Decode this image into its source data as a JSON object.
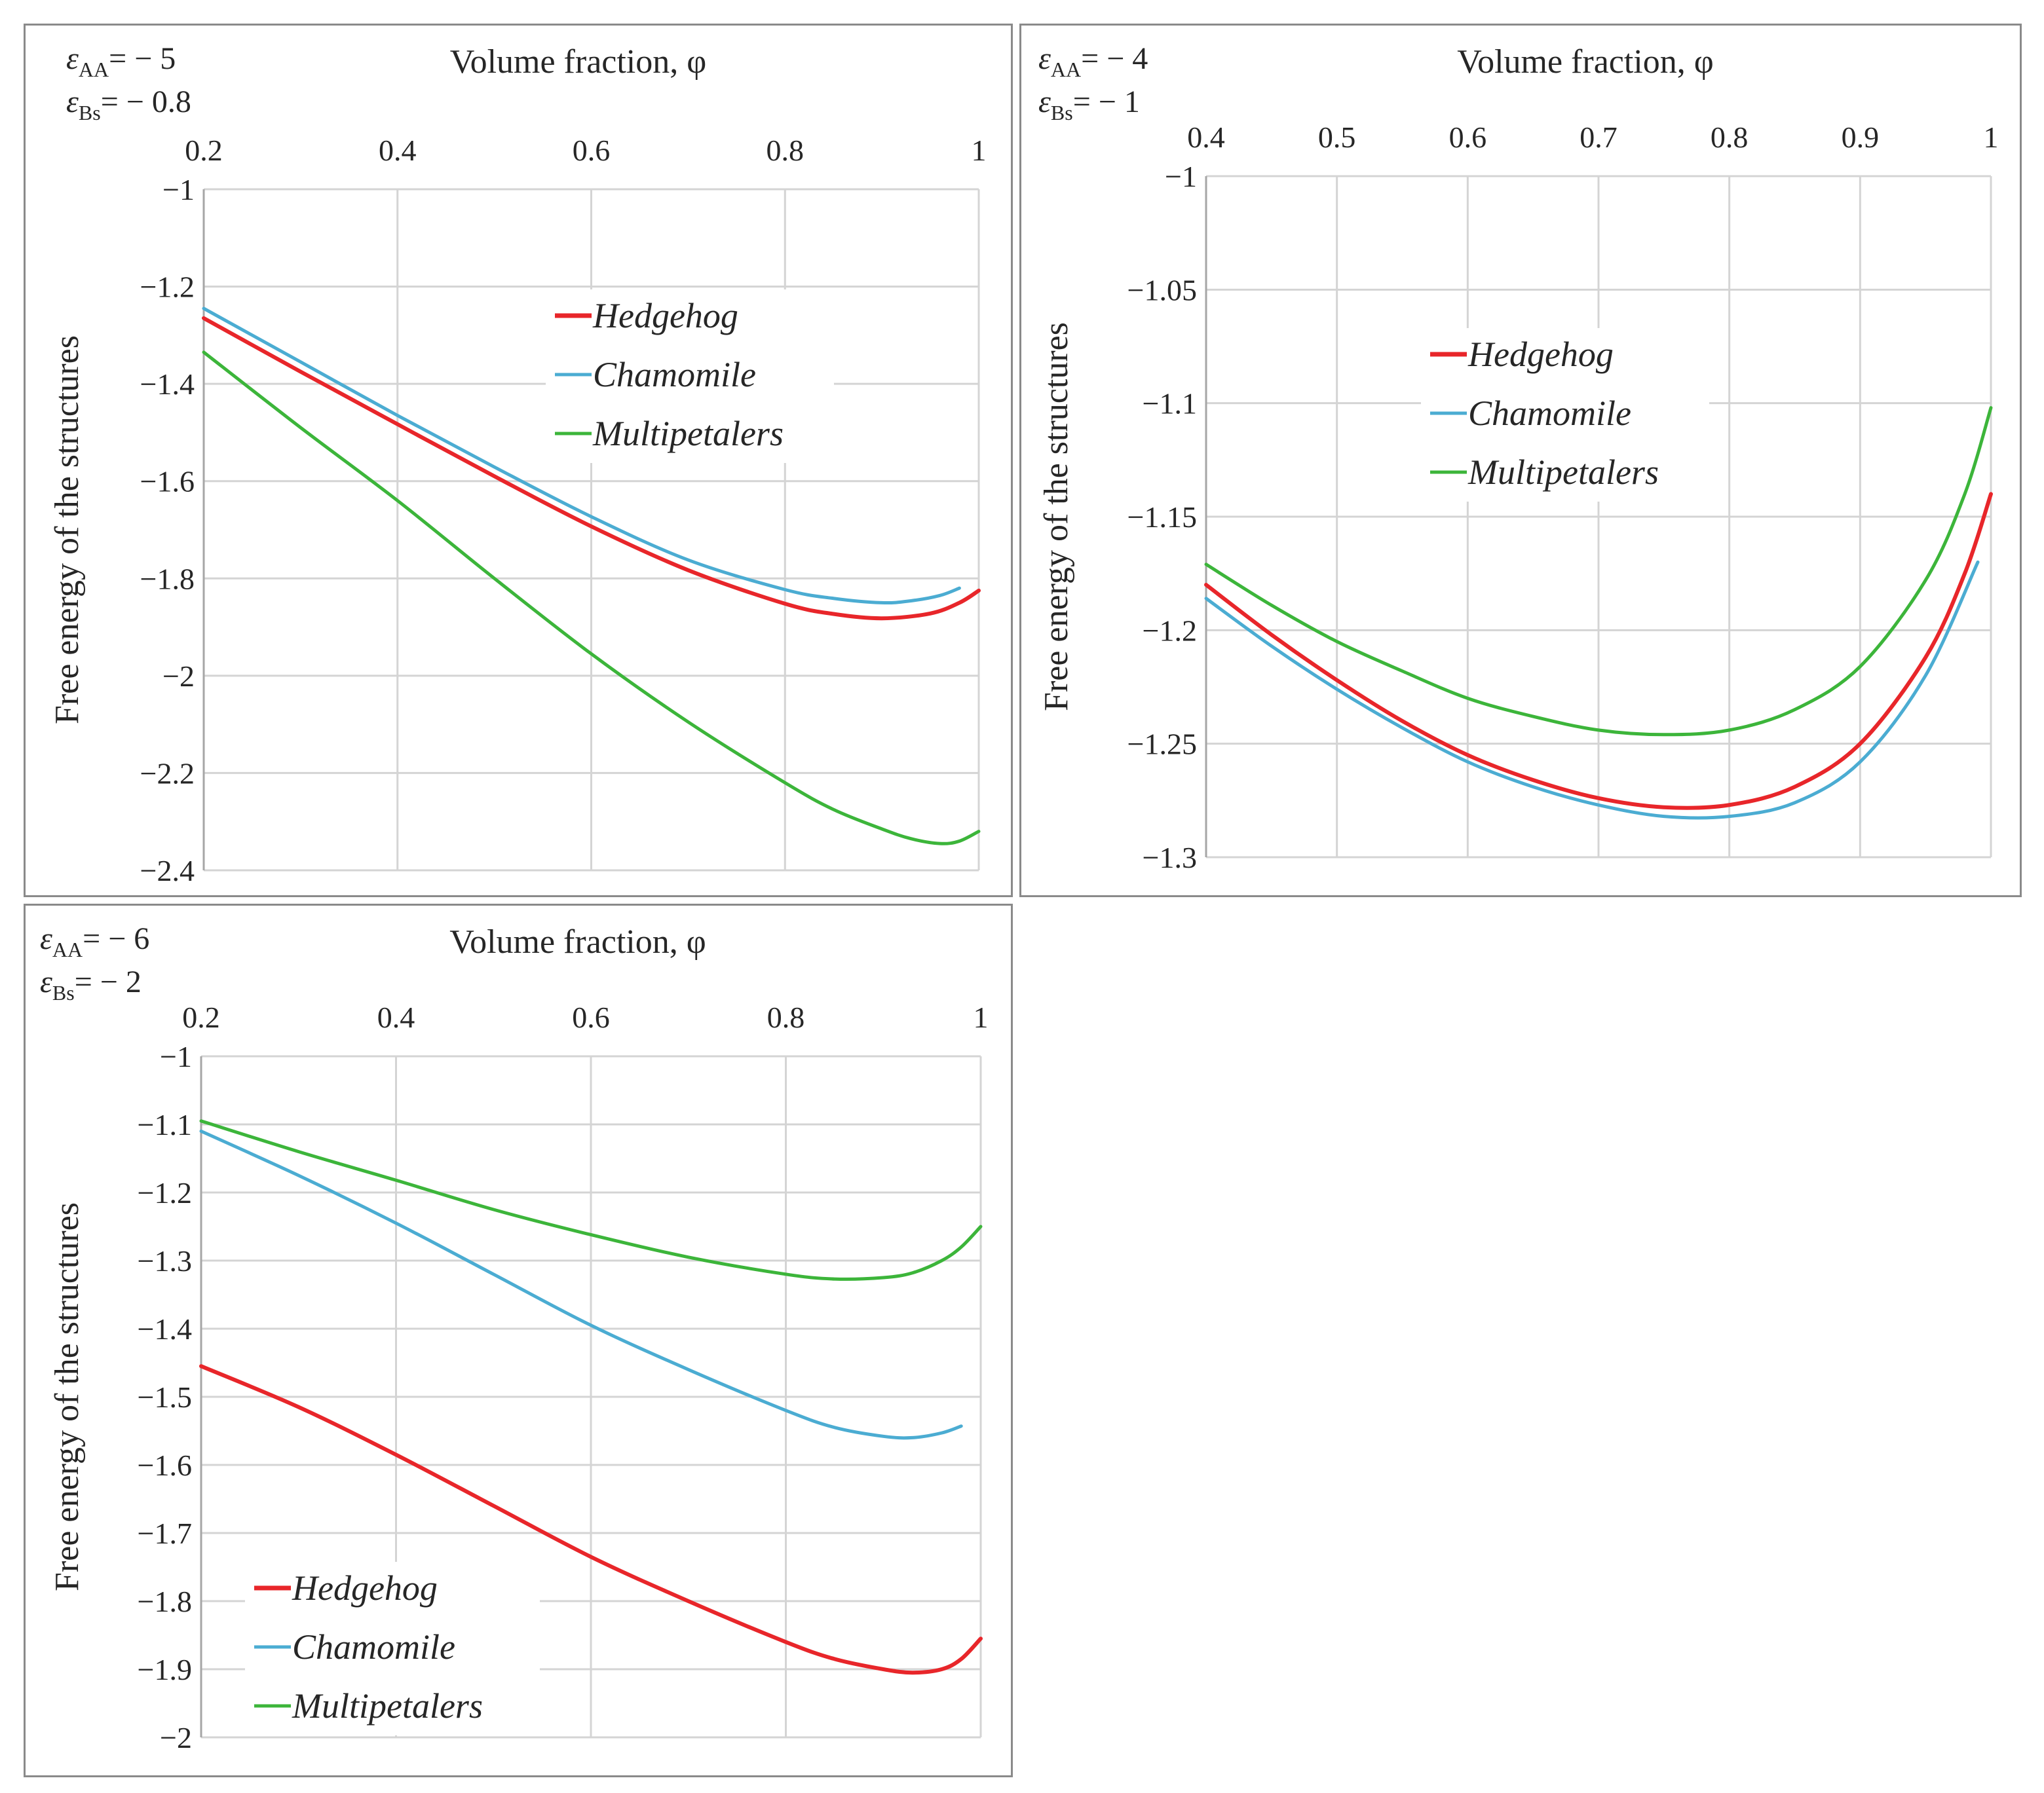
{
  "chart_data": [
    {
      "type": "line",
      "panel": "a",
      "title": "",
      "xlabel": "Volume fraction, φ",
      "ylabel": "Free energy of the structures",
      "params": [
        {
          "symbol": "ε",
          "sub": "AA",
          "text": "= − 5"
        },
        {
          "symbol": "ε",
          "sub": "Bs",
          "text": "=  − 0.8"
        }
      ],
      "xlim": [
        0.2,
        1
      ],
      "ylim": [
        -2.4,
        -1
      ],
      "x_ticks": [
        0.2,
        0.4,
        0.6,
        0.8,
        1
      ],
      "x_tick_labels": [
        "0.2",
        "0.4",
        "0.6",
        "0.8",
        "1"
      ],
      "y_ticks": [
        -1,
        -1.2,
        -1.4,
        -1.6,
        -1.8,
        -2,
        -2.2,
        -2.4
      ],
      "y_tick_labels": [
        "−1",
        "−1.2",
        "−1.4",
        "−1.6",
        "−1.8",
        "−2",
        "−2.2",
        "−2.4"
      ],
      "x_axis_position": "top",
      "legend_position": "upper-right",
      "series": [
        {
          "name": "Hedgehog",
          "color": "#e8262a",
          "x": [
            0.2,
            0.3,
            0.4,
            0.5,
            0.6,
            0.7,
            0.8,
            0.85,
            0.9,
            0.95,
            0.98,
            1.0
          ],
          "y": [
            -1.265,
            -1.375,
            -1.483,
            -1.59,
            -1.693,
            -1.783,
            -1.852,
            -1.873,
            -1.882,
            -1.872,
            -1.85,
            -1.825
          ]
        },
        {
          "name": "Chamomile",
          "color": "#4bacd2",
          "x": [
            0.2,
            0.3,
            0.4,
            0.5,
            0.6,
            0.7,
            0.8,
            0.85,
            0.9,
            0.93,
            0.96,
            0.98
          ],
          "y": [
            -1.245,
            -1.355,
            -1.465,
            -1.571,
            -1.673,
            -1.762,
            -1.823,
            -1.841,
            -1.85,
            -1.846,
            -1.835,
            -1.82
          ]
        },
        {
          "name": "Multipetalers",
          "color": "#3cb53a",
          "x": [
            0.2,
            0.3,
            0.4,
            0.5,
            0.6,
            0.7,
            0.8,
            0.85,
            0.9,
            0.93,
            0.96,
            0.98,
            1.0
          ],
          "y": [
            -1.335,
            -1.49,
            -1.64,
            -1.8,
            -1.955,
            -2.095,
            -2.22,
            -2.275,
            -2.315,
            -2.335,
            -2.345,
            -2.34,
            -2.32
          ]
        }
      ]
    },
    {
      "type": "line",
      "panel": "b",
      "title": "",
      "xlabel": "Volume fraction, φ",
      "ylabel": "Free energy of the structures",
      "params": [
        {
          "symbol": "ε",
          "sub": "AA",
          "text": "= − 4"
        },
        {
          "symbol": "ε",
          "sub": "Bs",
          "text": "= − 1"
        }
      ],
      "xlim": [
        0.4,
        1
      ],
      "ylim": [
        -1.3,
        -1
      ],
      "x_ticks": [
        0.4,
        0.5,
        0.6,
        0.7,
        0.8,
        0.9,
        1
      ],
      "x_tick_labels": [
        "0.4",
        "0.5",
        "0.6",
        "0.7",
        "0.8",
        "0.9",
        "1"
      ],
      "y_ticks": [
        -1,
        -1.05,
        -1.1,
        -1.15,
        -1.2,
        -1.25,
        -1.3
      ],
      "y_tick_labels": [
        "−1",
        "−1.05",
        "−1.1",
        "−1.15",
        "−1.2",
        "−1.25",
        "−1.3"
      ],
      "x_axis_position": "top",
      "legend_position": "upper-center",
      "series": [
        {
          "name": "Hedgehog",
          "color": "#e8262a",
          "x": [
            0.4,
            0.45,
            0.5,
            0.55,
            0.6,
            0.65,
            0.7,
            0.75,
            0.8,
            0.85,
            0.9,
            0.95,
            0.98,
            1.0
          ],
          "y": [
            -1.18,
            -1.202,
            -1.222,
            -1.24,
            -1.255,
            -1.266,
            -1.274,
            -1.278,
            -1.277,
            -1.269,
            -1.25,
            -1.212,
            -1.175,
            -1.14
          ]
        },
        {
          "name": "Chamomile",
          "color": "#4bacd2",
          "x": [
            0.4,
            0.45,
            0.5,
            0.55,
            0.6,
            0.65,
            0.7,
            0.75,
            0.8,
            0.85,
            0.9,
            0.95,
            0.99
          ],
          "y": [
            -1.186,
            -1.207,
            -1.226,
            -1.243,
            -1.258,
            -1.269,
            -1.277,
            -1.282,
            -1.282,
            -1.276,
            -1.258,
            -1.22,
            -1.17
          ]
        },
        {
          "name": "Multipetalers",
          "color": "#3cb53a",
          "x": [
            0.4,
            0.45,
            0.5,
            0.55,
            0.6,
            0.65,
            0.7,
            0.75,
            0.8,
            0.85,
            0.9,
            0.95,
            0.98,
            1.0
          ],
          "y": [
            -1.171,
            -1.189,
            -1.205,
            -1.218,
            -1.23,
            -1.238,
            -1.244,
            -1.246,
            -1.244,
            -1.235,
            -1.216,
            -1.178,
            -1.14,
            -1.102
          ]
        }
      ]
    },
    {
      "type": "line",
      "panel": "c",
      "title": "",
      "xlabel": "Volume fraction, φ",
      "ylabel": "Free energy of the structures",
      "params": [
        {
          "symbol": "ε",
          "sub": "AA",
          "text": "= − 6"
        },
        {
          "symbol": "ε",
          "sub": "Bs",
          "text": "=  − 2"
        }
      ],
      "xlim": [
        0.2,
        1
      ],
      "ylim": [
        -2,
        -1
      ],
      "x_ticks": [
        0.2,
        0.4,
        0.6,
        0.8,
        1
      ],
      "x_tick_labels": [
        "0.2",
        "0.4",
        "0.6",
        "0.8",
        "1"
      ],
      "y_ticks": [
        -1,
        -1.1,
        -1.2,
        -1.3,
        -1.4,
        -1.5,
        -1.6,
        -1.7,
        -1.8,
        -1.9,
        -2
      ],
      "y_tick_labels": [
        "−1",
        "−1.1",
        "−1.2",
        "−1.3",
        "−1.4",
        "−1.5",
        "−1.6",
        "−1.7",
        "−1.8",
        "−1.9",
        "−2"
      ],
      "x_axis_position": "top",
      "legend_position": "lower-left",
      "series": [
        {
          "name": "Hedgehog",
          "color": "#e8262a",
          "x": [
            0.2,
            0.3,
            0.4,
            0.5,
            0.6,
            0.7,
            0.8,
            0.85,
            0.9,
            0.93,
            0.96,
            0.98,
            1.0
          ],
          "y": [
            -1.455,
            -1.515,
            -1.585,
            -1.66,
            -1.735,
            -1.8,
            -1.86,
            -1.885,
            -1.9,
            -1.905,
            -1.9,
            -1.885,
            -1.855
          ]
        },
        {
          "name": "Chamomile",
          "color": "#4bacd2",
          "x": [
            0.2,
            0.3,
            0.4,
            0.5,
            0.6,
            0.7,
            0.8,
            0.85,
            0.9,
            0.93,
            0.96,
            0.98
          ],
          "y": [
            -1.11,
            -1.175,
            -1.245,
            -1.32,
            -1.395,
            -1.46,
            -1.52,
            -1.545,
            -1.558,
            -1.56,
            -1.553,
            -1.543
          ]
        },
        {
          "name": "Multipetalers",
          "color": "#3cb53a",
          "x": [
            0.2,
            0.3,
            0.4,
            0.5,
            0.6,
            0.7,
            0.8,
            0.85,
            0.9,
            0.93,
            0.96,
            0.98,
            1.0
          ],
          "y": [
            -1.095,
            -1.14,
            -1.182,
            -1.225,
            -1.262,
            -1.295,
            -1.32,
            -1.327,
            -1.325,
            -1.318,
            -1.3,
            -1.28,
            -1.25
          ]
        }
      ]
    }
  ]
}
